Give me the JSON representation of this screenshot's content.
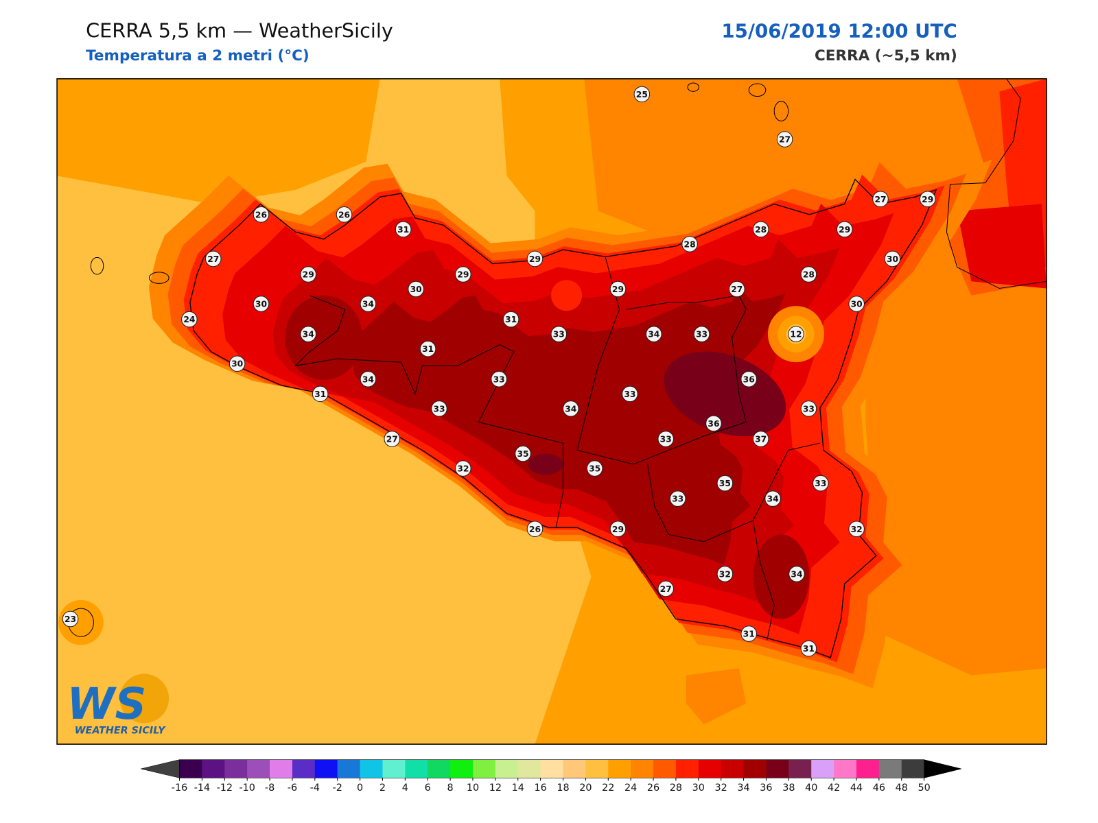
{
  "header": {
    "title": "CERRA 5,5 km — WeatherSicily",
    "subtitle": "Temperatura a 2 metri (°C)",
    "date": "15/06/2019 12:00 UTC",
    "model": "CERRA (~5,5 km)"
  },
  "stations": {
    "values": [
      25,
      27,
      26,
      26,
      31,
      27,
      29,
      29,
      29,
      28,
      28,
      29,
      27,
      29,
      30,
      28,
      27,
      29,
      30,
      30,
      34,
      24,
      31,
      34,
      33,
      34,
      33,
      12,
      30,
      31,
      30,
      34,
      33,
      36,
      31,
      33,
      33,
      34,
      33,
      36,
      27,
      33,
      37,
      35,
      32,
      35,
      35,
      33,
      33,
      34,
      26,
      29,
      32,
      27,
      32,
      34,
      23,
      31,
      31
    ]
  },
  "colorbar": {
    "ticks": [
      -16,
      -14,
      -12,
      -10,
      -8,
      -6,
      -4,
      -2,
      0,
      2,
      4,
      6,
      8,
      10,
      12,
      14,
      16,
      18,
      20,
      22,
      24,
      26,
      28,
      30,
      32,
      34,
      36,
      38,
      40,
      42,
      44,
      46,
      48,
      50
    ],
    "colors": [
      "#3a004f",
      "#5c1283",
      "#7b2f9c",
      "#9c4fb8",
      "#e07de8",
      "#5a2dc6",
      "#1010f5",
      "#1878d8",
      "#10c4e8",
      "#60f0d0",
      "#10e0a8",
      "#10d860",
      "#10f010",
      "#80f040",
      "#c8f090",
      "#e0e8a0",
      "#ffe0a0",
      "#ffc878",
      "#ffc040",
      "#ffa000",
      "#ff8400",
      "#ff5a00",
      "#ff2000",
      "#e60000",
      "#c80000",
      "#a00000",
      "#780018",
      "#782050",
      "#d8a0f8",
      "#ff78c8",
      "#ff2090",
      "#7a7a7a",
      "#3c3c3c"
    ],
    "under_color": "#404040",
    "over_color": "#000000"
  },
  "logo": {
    "mark": "WS",
    "name": "WEATHER SICILY"
  }
}
